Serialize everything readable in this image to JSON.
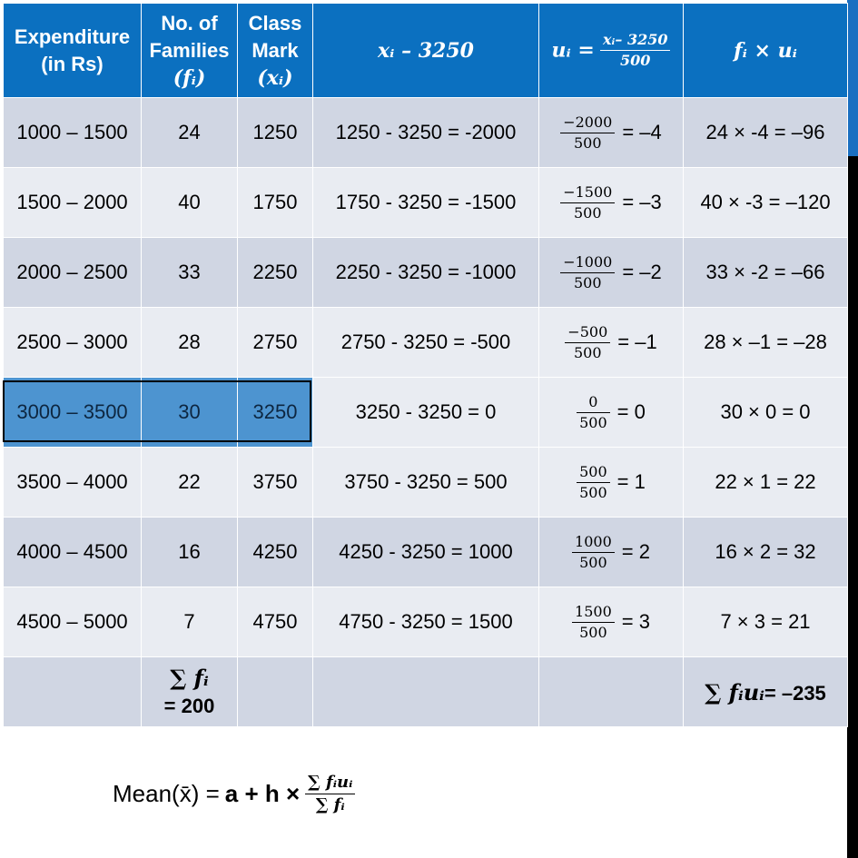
{
  "headers": {
    "expenditure": [
      "Expenditure",
      "(in Rs)"
    ],
    "families": [
      "No. of",
      "Families",
      "(fᵢ)"
    ],
    "classmark": [
      "Class",
      "Mark",
      "(xᵢ)"
    ],
    "deviation": "xᵢ – 3250",
    "u_label": "uᵢ =",
    "u_num": "xᵢ– 3250",
    "u_den": "500",
    "fu": "fᵢ × uᵢ"
  },
  "rows": [
    {
      "range": "1000 – 1500",
      "f": "24",
      "x": "1250",
      "dev": "1250 - 3250 = -2000",
      "u_num": "−2000",
      "u_den": "500",
      "u_val": "= –4",
      "fu": "24 × -4  = –96"
    },
    {
      "range": "1500 – 2000",
      "f": "40",
      "x": "1750",
      "dev": "1750 - 3250 = -1500",
      "u_num": "−1500",
      "u_den": "500",
      "u_val": "= –3",
      "fu": "40 × -3 = –120"
    },
    {
      "range": "2000 – 2500",
      "f": "33",
      "x": "2250",
      "dev": "2250 - 3250 = -1000",
      "u_num": "−1000",
      "u_den": "500",
      "u_val": "= –2",
      "fu": "33 × -2  = –66"
    },
    {
      "range": "2500 – 3000",
      "f": "28",
      "x": "2750",
      "dev": "2750 - 3250 = -500",
      "u_num": "−500",
      "u_den": "500",
      "u_val": "= –1",
      "fu": "28 × –1 = –28"
    },
    {
      "range": "3000 – 3500",
      "f": "30",
      "x": "3250",
      "dev": "3250 - 3250  = 0",
      "u_num": "0",
      "u_den": "500",
      "u_val": "= 0",
      "fu": "30 × 0  = 0"
    },
    {
      "range": "3500 – 4000",
      "f": "22",
      "x": "3750",
      "dev": "3750 - 3250 = 500",
      "u_num": "500",
      "u_den": "500",
      "u_val": "= 1",
      "fu": "22 × 1  = 22"
    },
    {
      "range": "4000 – 4500",
      "f": "16",
      "x": "4250",
      "dev": "4250 - 3250 = 1000",
      "u_num": "1000",
      "u_den": "500",
      "u_val": "= 2",
      "fu": "16 × 2  = 32"
    },
    {
      "range": "4500 – 5000",
      "f": "7",
      "x": "4750",
      "dev": "4750 - 3250 = 1500",
      "u_num": "1500",
      "u_den": "500",
      "u_val": "= 3",
      "fu": "7 × 3  = 21"
    }
  ],
  "totals": {
    "sum_f_label": "∑ fᵢ",
    "sum_f_value": "= 200",
    "sum_fu_label": "∑ fᵢuᵢ",
    "sum_fu_value": "= –235"
  },
  "formula": {
    "lhs": "Mean(x̄) = ",
    "rhs": "a + h ×",
    "num": "∑ fᵢuᵢ",
    "den": "∑ fᵢ"
  }
}
